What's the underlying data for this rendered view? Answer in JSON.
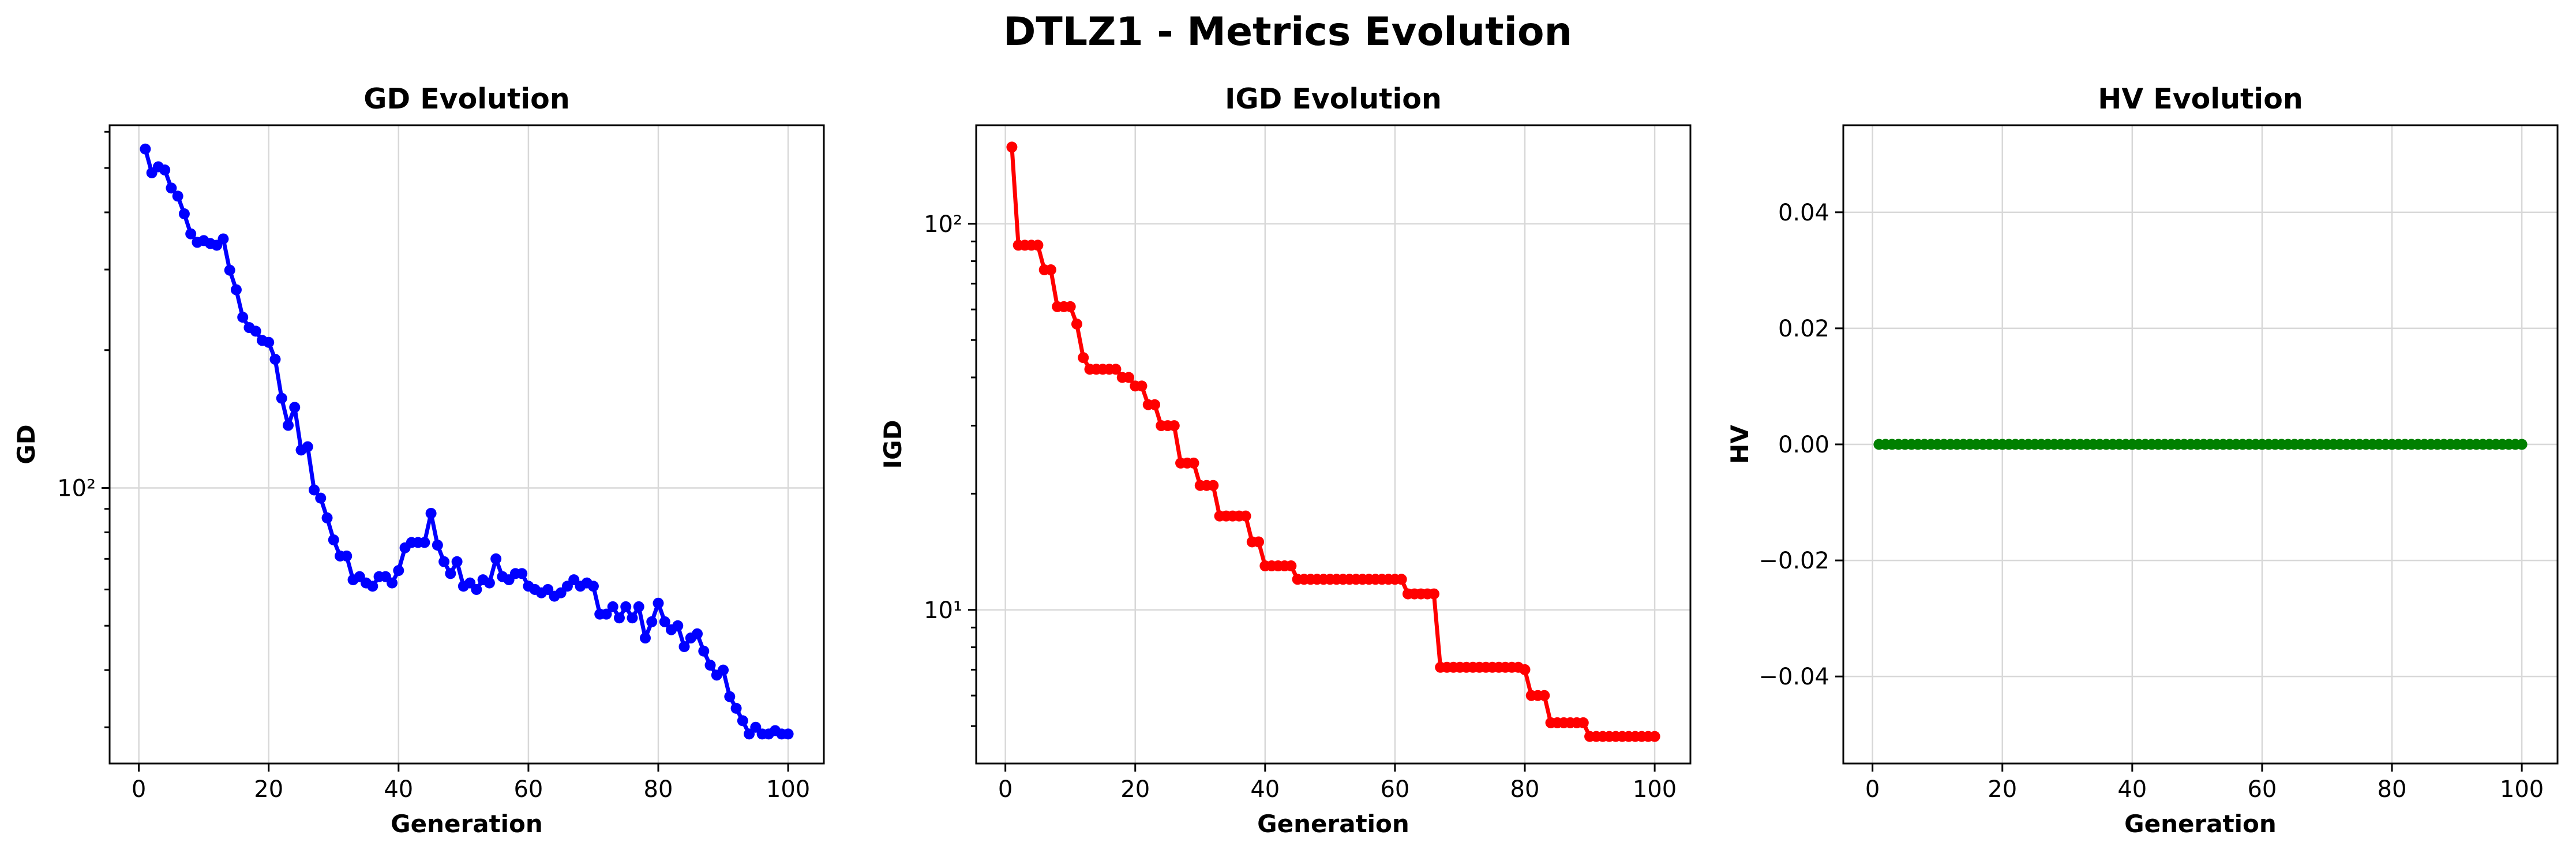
{
  "figure": {
    "title": "DTLZ1 - Metrics Evolution"
  },
  "chart_data": [
    {
      "type": "line",
      "title": "GD Evolution",
      "xlabel": "Generation",
      "ylabel": "GD",
      "yscale": "log",
      "grid": true,
      "color": "#0000ff",
      "xlim": [
        -4.5,
        105.5
      ],
      "ylim": [
        25,
        620
      ],
      "xticks": [
        0,
        20,
        40,
        60,
        80,
        100
      ],
      "yticks": [
        {
          "value": 100,
          "label": "10²"
        }
      ],
      "x": [
        1,
        2,
        3,
        4,
        5,
        6,
        7,
        8,
        9,
        10,
        11,
        12,
        13,
        14,
        15,
        16,
        17,
        18,
        19,
        20,
        21,
        22,
        23,
        24,
        25,
        26,
        27,
        28,
        29,
        30,
        31,
        32,
        33,
        34,
        35,
        36,
        37,
        38,
        39,
        40,
        41,
        42,
        43,
        44,
        45,
        46,
        47,
        48,
        49,
        50,
        51,
        52,
        53,
        54,
        55,
        56,
        57,
        58,
        59,
        60,
        61,
        62,
        63,
        64,
        65,
        66,
        67,
        68,
        69,
        70,
        71,
        72,
        73,
        74,
        75,
        76,
        77,
        78,
        79,
        80,
        81,
        82,
        83,
        84,
        85,
        86,
        87,
        88,
        89,
        90,
        91,
        92,
        93,
        94,
        95,
        96,
        97,
        98,
        99,
        100
      ],
      "y": [
        550,
        488,
        503,
        495,
        452,
        434,
        397,
        359,
        344,
        347,
        342,
        339,
        350,
        299,
        271,
        236,
        224,
        220,
        210,
        208,
        191,
        157,
        137,
        150,
        121,
        123,
        99,
        95,
        86,
        77,
        71,
        71,
        63,
        64,
        62,
        61,
        64,
        64,
        62,
        66,
        74,
        76,
        76,
        76,
        88,
        75,
        69,
        65,
        69,
        61,
        62,
        60,
        63,
        62,
        70,
        64,
        63,
        65,
        65,
        61,
        60,
        59,
        60,
        58,
        59,
        61,
        63,
        61,
        62,
        61,
        53,
        53,
        55,
        52,
        55,
        52,
        55,
        47,
        51,
        56,
        51,
        49,
        50,
        45,
        47,
        48,
        44,
        41,
        39,
        40,
        35,
        33,
        31,
        29,
        30,
        29,
        29,
        29.5,
        29,
        29
      ]
    },
    {
      "type": "line",
      "title": "IGD Evolution",
      "xlabel": "Generation",
      "ylabel": "IGD",
      "yscale": "log",
      "grid": true,
      "color": "#ff0000",
      "xlim": [
        -4.5,
        105.5
      ],
      "ylim": [
        4,
        180
      ],
      "xticks": [
        0,
        20,
        40,
        60,
        80,
        100
      ],
      "yticks": [
        {
          "value": 10,
          "label": "10¹"
        },
        {
          "value": 100,
          "label": "10²"
        }
      ],
      "x": [
        1,
        2,
        3,
        4,
        5,
        6,
        7,
        8,
        9,
        10,
        11,
        12,
        13,
        14,
        15,
        16,
        17,
        18,
        19,
        20,
        21,
        22,
        23,
        24,
        25,
        26,
        27,
        28,
        29,
        30,
        31,
        32,
        33,
        34,
        35,
        36,
        37,
        38,
        39,
        40,
        41,
        42,
        43,
        44,
        45,
        46,
        47,
        48,
        49,
        50,
        51,
        52,
        53,
        54,
        55,
        56,
        57,
        58,
        59,
        60,
        61,
        62,
        63,
        64,
        65,
        66,
        67,
        68,
        69,
        70,
        71,
        72,
        73,
        74,
        75,
        76,
        77,
        78,
        79,
        80,
        81,
        82,
        83,
        84,
        85,
        86,
        87,
        88,
        89,
        90,
        91,
        92,
        93,
        94,
        95,
        96,
        97,
        98,
        99,
        100
      ],
      "y": [
        158,
        88,
        88,
        88,
        88,
        76,
        76,
        61,
        61,
        61,
        55,
        45,
        42,
        42,
        42,
        42,
        42,
        40,
        40,
        38,
        38,
        34,
        34,
        30,
        30,
        30,
        24,
        24,
        24,
        21,
        21,
        21,
        17.5,
        17.5,
        17.5,
        17.5,
        17.5,
        15,
        15,
        13,
        13,
        13,
        13,
        13,
        12,
        12,
        12,
        12,
        12,
        12,
        12,
        12,
        12,
        12,
        12,
        12,
        12,
        12,
        12,
        12,
        12,
        11,
        11,
        11,
        11,
        11,
        7.1,
        7.1,
        7.1,
        7.1,
        7.1,
        7.1,
        7.1,
        7.1,
        7.1,
        7.1,
        7.1,
        7.1,
        7.1,
        7.0,
        6.0,
        6.0,
        6.0,
        5.1,
        5.1,
        5.1,
        5.1,
        5.1,
        5.1,
        4.7,
        4.7,
        4.7,
        4.7,
        4.7,
        4.7,
        4.7,
        4.7,
        4.7,
        4.7,
        4.7
      ]
    },
    {
      "type": "line",
      "title": "HV Evolution",
      "xlabel": "Generation",
      "ylabel": "HV",
      "yscale": "linear",
      "grid": true,
      "color": "#008000",
      "xlim": [
        -4.5,
        105.5
      ],
      "ylim": [
        -0.055,
        0.055
      ],
      "xticks": [
        0,
        20,
        40,
        60,
        80,
        100
      ],
      "yticks": [
        {
          "value": 0.04,
          "label": "0.04"
        },
        {
          "value": 0.02,
          "label": "0.02"
        },
        {
          "value": 0.0,
          "label": "0.00"
        },
        {
          "value": -0.02,
          "label": "−0.02"
        },
        {
          "value": -0.04,
          "label": "−0.04"
        }
      ],
      "x": [
        1,
        2,
        3,
        4,
        5,
        6,
        7,
        8,
        9,
        10,
        11,
        12,
        13,
        14,
        15,
        16,
        17,
        18,
        19,
        20,
        21,
        22,
        23,
        24,
        25,
        26,
        27,
        28,
        29,
        30,
        31,
        32,
        33,
        34,
        35,
        36,
        37,
        38,
        39,
        40,
        41,
        42,
        43,
        44,
        45,
        46,
        47,
        48,
        49,
        50,
        51,
        52,
        53,
        54,
        55,
        56,
        57,
        58,
        59,
        60,
        61,
        62,
        63,
        64,
        65,
        66,
        67,
        68,
        69,
        70,
        71,
        72,
        73,
        74,
        75,
        76,
        77,
        78,
        79,
        80,
        81,
        82,
        83,
        84,
        85,
        86,
        87,
        88,
        89,
        90,
        91,
        92,
        93,
        94,
        95,
        96,
        97,
        98,
        99,
        100
      ],
      "y": [
        0,
        0,
        0,
        0,
        0,
        0,
        0,
        0,
        0,
        0,
        0,
        0,
        0,
        0,
        0,
        0,
        0,
        0,
        0,
        0,
        0,
        0,
        0,
        0,
        0,
        0,
        0,
        0,
        0,
        0,
        0,
        0,
        0,
        0,
        0,
        0,
        0,
        0,
        0,
        0,
        0,
        0,
        0,
        0,
        0,
        0,
        0,
        0,
        0,
        0,
        0,
        0,
        0,
        0,
        0,
        0,
        0,
        0,
        0,
        0,
        0,
        0,
        0,
        0,
        0,
        0,
        0,
        0,
        0,
        0,
        0,
        0,
        0,
        0,
        0,
        0,
        0,
        0,
        0,
        0,
        0,
        0,
        0,
        0,
        0,
        0,
        0,
        0,
        0,
        0,
        0,
        0,
        0,
        0,
        0,
        0,
        0,
        0,
        0,
        0
      ]
    }
  ]
}
